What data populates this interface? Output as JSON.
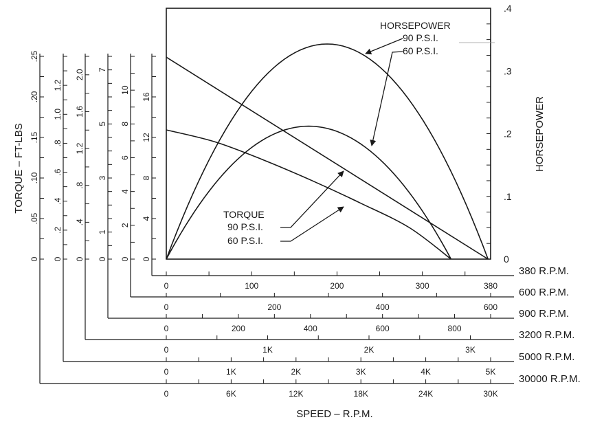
{
  "chart_data": {
    "type": "line",
    "title": "",
    "xlabel": "SPEED – R.P.M.",
    "ylabel_left": "TORQUE – FT-LBS",
    "ylabel_right": "HORSEPOWER",
    "grid": false,
    "x_normalized_range": [
      0,
      1
    ],
    "right_axis": {
      "label": "HORSEPOWER",
      "range": [
        0,
        0.4
      ],
      "ticks": [
        {
          "value": 0,
          "label": "0"
        },
        {
          "value": 0.1,
          "label": ".1"
        },
        {
          "value": 0.2,
          "label": ".2"
        },
        {
          "value": 0.3,
          "label": ".3"
        },
        {
          "value": 0.4,
          "label": ".4"
        }
      ]
    },
    "left_axes": [
      {
        "max": 0.25,
        "labels": [
          {
            "value": 0,
            "label": "0"
          },
          {
            "value": 0.05,
            "label": ".05"
          },
          {
            "value": 0.1,
            "label": ".10"
          },
          {
            "value": 0.15,
            "label": ".15"
          },
          {
            "value": 0.2,
            "label": ".20"
          },
          {
            "value": 0.25,
            "label": ".25"
          }
        ]
      },
      {
        "max": 1.4,
        "labels": [
          {
            "value": 0,
            "label": "0"
          },
          {
            "value": 0.2,
            "label": ".2"
          },
          {
            "value": 0.4,
            "label": ".4"
          },
          {
            "value": 0.6,
            "label": ".6"
          },
          {
            "value": 0.8,
            "label": ".8"
          },
          {
            "value": 1.0,
            "label": "1.0"
          },
          {
            "value": 1.2,
            "label": "1.2"
          }
        ]
      },
      {
        "max": 2.2,
        "labels": [
          {
            "value": 0,
            "label": "0"
          },
          {
            "value": 0.4,
            "label": ".4"
          },
          {
            "value": 0.8,
            "label": ".8"
          },
          {
            "value": 1.2,
            "label": "1.2"
          },
          {
            "value": 1.6,
            "label": "1.6"
          },
          {
            "value": 2.0,
            "label": "2.0"
          }
        ]
      },
      {
        "max": 7.5,
        "labels": [
          {
            "value": 0,
            "label": "0"
          },
          {
            "value": 1,
            "label": "1"
          },
          {
            "value": 3,
            "label": "3"
          },
          {
            "value": 5,
            "label": "5"
          },
          {
            "value": 7,
            "label": "7"
          }
        ]
      },
      {
        "max": 12,
        "labels": [
          {
            "value": 0,
            "label": "0"
          },
          {
            "value": 2,
            "label": "2"
          },
          {
            "value": 4,
            "label": "4"
          },
          {
            "value": 6,
            "label": "6"
          },
          {
            "value": 8,
            "label": "8"
          },
          {
            "value": 10,
            "label": "10"
          }
        ]
      },
      {
        "max": 20,
        "labels": [
          {
            "value": 0,
            "label": "0"
          },
          {
            "value": 4,
            "label": "4"
          },
          {
            "value": 8,
            "label": "8"
          },
          {
            "value": 12,
            "label": "12"
          },
          {
            "value": 16,
            "label": "16"
          }
        ]
      }
    ],
    "x_axes": [
      {
        "label": "380 R.P.M.",
        "max": 380,
        "ticks": [
          {
            "value": 0,
            "label": "0"
          },
          {
            "value": 100,
            "label": "100"
          },
          {
            "value": 200,
            "label": "200"
          },
          {
            "value": 300,
            "label": "300"
          },
          {
            "value": 380,
            "label": "380"
          }
        ]
      },
      {
        "label": "600 R.P.M.",
        "max": 600,
        "ticks": [
          {
            "value": 0,
            "label": "0"
          },
          {
            "value": 200,
            "label": "200"
          },
          {
            "value": 400,
            "label": "400"
          },
          {
            "value": 600,
            "label": "600"
          }
        ]
      },
      {
        "label": "900 R.P.M.",
        "max": 900,
        "ticks": [
          {
            "value": 0,
            "label": "0"
          },
          {
            "value": 200,
            "label": "200"
          },
          {
            "value": 400,
            "label": "400"
          },
          {
            "value": 600,
            "label": "600"
          },
          {
            "value": 800,
            "label": "800"
          }
        ]
      },
      {
        "label": "3200 R.P.M.",
        "max": 3200,
        "ticks": [
          {
            "value": 0,
            "label": "0"
          },
          {
            "value": 1000,
            "label": "1K"
          },
          {
            "value": 2000,
            "label": "2K"
          },
          {
            "value": 3000,
            "label": "3K"
          }
        ]
      },
      {
        "label": "5000 R.P.M.",
        "max": 5000,
        "ticks": [
          {
            "value": 0,
            "label": "0"
          },
          {
            "value": 1000,
            "label": "1K"
          },
          {
            "value": 2000,
            "label": "2K"
          },
          {
            "value": 3000,
            "label": "3K"
          },
          {
            "value": 4000,
            "label": "4K"
          },
          {
            "value": 5000,
            "label": "5K"
          }
        ]
      },
      {
        "label": "30000 R.P.M.",
        "max": 30000,
        "ticks": [
          {
            "value": 0,
            "label": "0"
          },
          {
            "value": 6000,
            "label": "6K"
          },
          {
            "value": 12000,
            "label": "12K"
          },
          {
            "value": 18000,
            "label": "18K"
          },
          {
            "value": 24000,
            "label": "24K"
          },
          {
            "value": 30000,
            "label": "30K"
          }
        ]
      }
    ],
    "series": [
      {
        "name": "90 P.S.I.",
        "group": "HORSEPOWER",
        "axis": "right",
        "kind": "parabola",
        "x_zero": 0.992,
        "peak_x": 0.496,
        "peak_y": 0.343
      },
      {
        "name": "60 P.S.I.",
        "group": "HORSEPOWER",
        "axis": "right",
        "kind": "parabola",
        "x_zero": 0.878,
        "peak_x": 0.439,
        "peak_y": 0.212
      },
      {
        "name": "90 P.S.I.",
        "group": "TORQUE",
        "axis": "right",
        "kind": "line",
        "points": [
          [
            0,
            0.322
          ],
          [
            0.992,
            0
          ]
        ]
      },
      {
        "name": "60 P.S.I.",
        "group": "TORQUE",
        "axis": "right",
        "kind": "polyline",
        "points": [
          [
            0,
            0.206
          ],
          [
            0.15,
            0.187
          ],
          [
            0.3,
            0.158
          ],
          [
            0.45,
            0.125
          ],
          [
            0.6,
            0.089
          ],
          [
            0.75,
            0.05
          ],
          [
            0.878,
            0
          ]
        ]
      }
    ],
    "annotations": {
      "hp_title": "HORSEPOWER",
      "hp_90": "90 P.S.I.",
      "hp_60": "60 P.S.I.",
      "torque_title": "TORQUE",
      "torque_90": "90 P.S.I.",
      "torque_60": "60 P.S.I."
    }
  }
}
